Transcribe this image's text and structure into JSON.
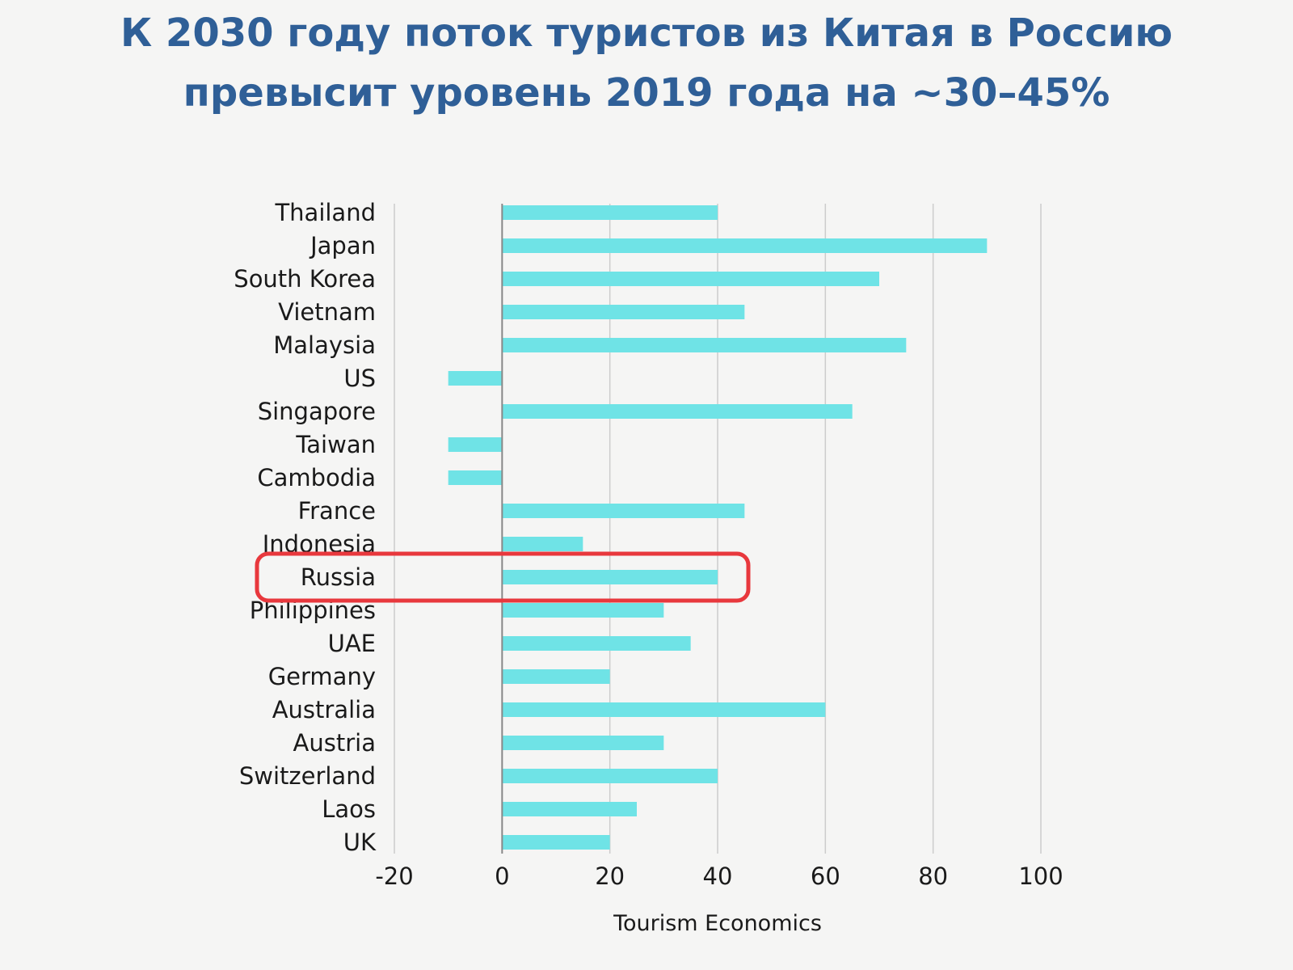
{
  "title_lines": [
    "К 2030 году поток туристов из Китая в Россию",
    "превысит уровень 2019 года на ~30–45%"
  ],
  "colors": {
    "title": "#2f5f97",
    "bar": "#6fe3e6",
    "highlight": "#e8383d",
    "grid": "#cccccc",
    "zero_line": "#888888",
    "background": "#f5f5f4"
  },
  "chart_data": {
    "type": "bar",
    "orientation": "horizontal",
    "categories": [
      "Thailand",
      "Japan",
      "South Korea",
      "Vietnam",
      "Malaysia",
      "US",
      "Singapore",
      "Taiwan",
      "Cambodia",
      "France",
      "Indonesia",
      "Russia",
      "Philippines",
      "UAE",
      "Germany",
      "Australia",
      "Austria",
      "Switzerland",
      "Laos",
      "UK"
    ],
    "values": [
      40,
      90,
      70,
      45,
      75,
      -10,
      65,
      -10,
      -10,
      45,
      15,
      40,
      30,
      35,
      20,
      60,
      30,
      40,
      25,
      20
    ],
    "xlim": [
      -20,
      100
    ],
    "xticks": [
      -20,
      0,
      20,
      40,
      60,
      80,
      100
    ],
    "xlabel": "Tourism Economics",
    "grid": "vertical",
    "highlighted_category": "Russia"
  }
}
